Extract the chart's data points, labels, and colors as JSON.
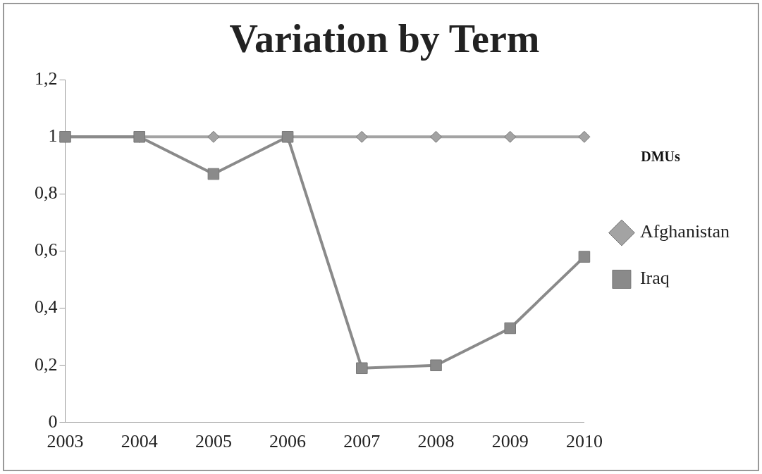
{
  "chart_data": {
    "type": "line",
    "title": "Variation by Term",
    "legend_title": "DMUs",
    "categories": [
      "2003",
      "2004",
      "2005",
      "2006",
      "2007",
      "2008",
      "2009",
      "2010"
    ],
    "series": [
      {
        "name": "Afghanistan",
        "color": "#a3a3a3",
        "marker": "diamond",
        "values": [
          1,
          1,
          1,
          1,
          1,
          1,
          1,
          1
        ]
      },
      {
        "name": "Iraq",
        "color": "#8a8a8a",
        "marker": "square",
        "values": [
          1,
          1,
          0.87,
          1,
          0.19,
          0.2,
          0.33,
          0.58
        ]
      }
    ],
    "ylim": [
      0,
      1.2
    ],
    "yticks": [
      {
        "value": 0,
        "label": "0"
      },
      {
        "value": 0.2,
        "label": "0,2"
      },
      {
        "value": 0.4,
        "label": "0,4"
      },
      {
        "value": 0.6,
        "label": "0,6"
      },
      {
        "value": 0.8,
        "label": "0,8"
      },
      {
        "value": 1,
        "label": "1"
      },
      {
        "value": 1.2,
        "label": "1,2"
      }
    ],
    "grid": false,
    "legend": "right",
    "line_style": "solid"
  }
}
